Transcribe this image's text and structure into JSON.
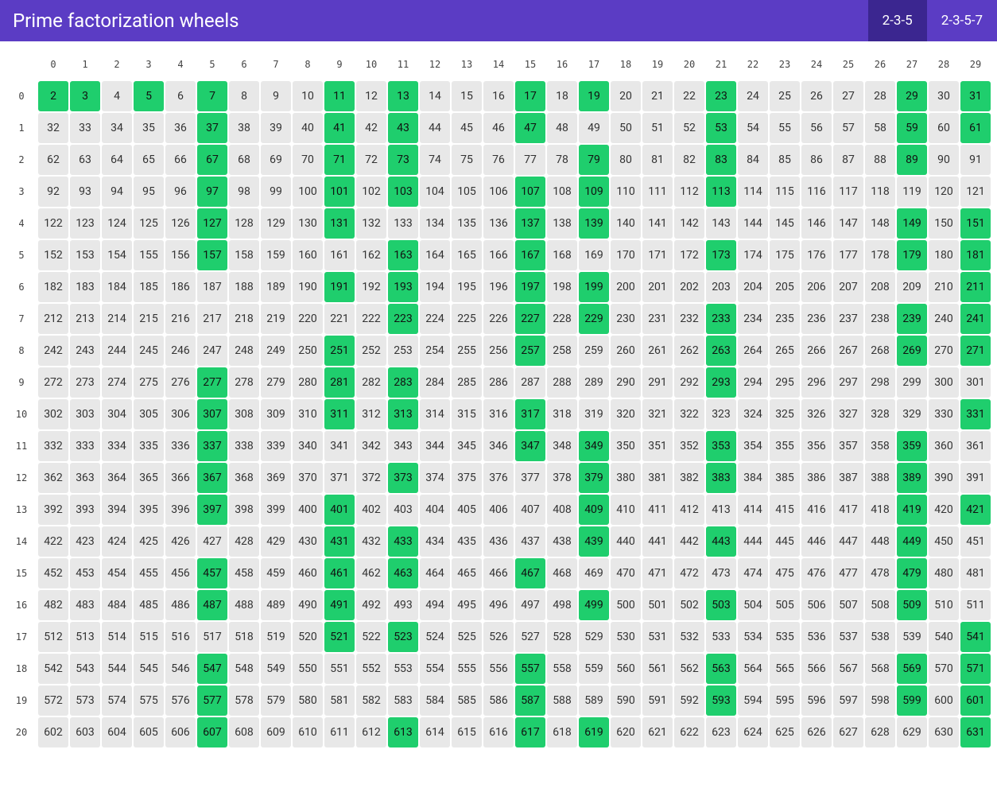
{
  "header": {
    "title": "Prime factorization wheels",
    "tabs": [
      {
        "label": "2-3-5",
        "active": true
      },
      {
        "label": "2-3-5-7",
        "active": false
      }
    ]
  },
  "grid": {
    "start": 2,
    "cols": 30,
    "rows": 21,
    "col_headers": [
      0,
      1,
      2,
      3,
      4,
      5,
      6,
      7,
      8,
      9,
      10,
      11,
      12,
      13,
      14,
      15,
      16,
      17,
      18,
      19,
      20,
      21,
      22,
      23,
      24,
      25,
      26,
      27,
      28,
      29
    ],
    "row_headers": [
      0,
      1,
      2,
      3,
      4,
      5,
      6,
      7,
      8,
      9,
      10,
      11,
      12,
      13,
      14,
      15,
      16,
      17,
      18,
      19,
      20
    ],
    "cell_bg": "#e8e8e8",
    "prime_bg": "#1fce6d",
    "header_bg": "#5b3cc4",
    "tab_active_bg": "#3b2690",
    "primes": [
      2,
      3,
      5,
      7,
      11,
      13,
      17,
      19,
      23,
      29,
      31,
      37,
      41,
      43,
      47,
      53,
      59,
      61,
      67,
      71,
      73,
      79,
      83,
      89,
      97,
      101,
      103,
      107,
      109,
      113,
      127,
      131,
      137,
      139,
      149,
      151,
      157,
      163,
      167,
      173,
      179,
      181,
      191,
      193,
      197,
      199,
      211,
      223,
      227,
      229,
      233,
      239,
      241,
      251,
      257,
      263,
      269,
      271,
      277,
      281,
      283,
      293,
      307,
      311,
      313,
      317,
      331,
      337,
      347,
      349,
      353,
      359,
      367,
      373,
      379,
      383,
      389,
      397,
      401,
      409,
      419,
      421,
      431,
      433,
      439,
      443,
      449,
      457,
      461,
      463,
      467,
      479,
      487,
      491,
      499,
      503,
      509,
      521,
      523,
      541,
      547,
      557,
      563,
      569,
      571,
      577,
      587,
      593,
      599,
      601,
      607,
      613,
      617,
      619,
      631
    ]
  }
}
